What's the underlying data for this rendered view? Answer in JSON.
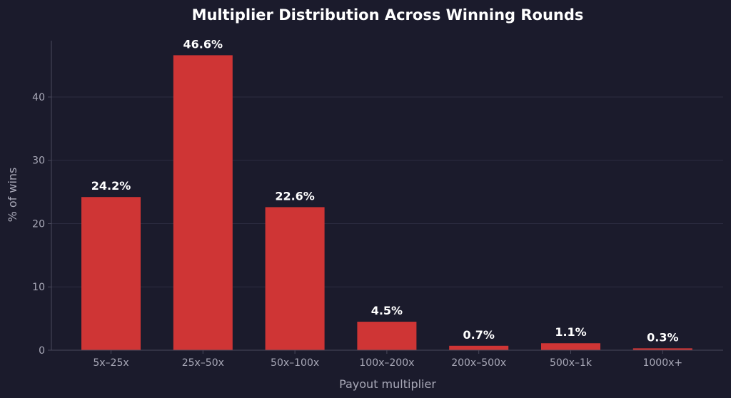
{
  "chart_data": {
    "type": "bar",
    "title": "Multiplier Distribution Across Winning Rounds",
    "xlabel": "Payout multiplier",
    "ylabel": "% of wins",
    "categories": [
      "5x–25x",
      "25x–50x",
      "50x–100x",
      "100x–200x",
      "200x–500x",
      "500x–1k",
      "1000x+"
    ],
    "values": [
      24.2,
      46.6,
      22.6,
      4.5,
      0.7,
      1.1,
      0.3
    ],
    "value_labels": [
      "24.2%",
      "46.6%",
      "22.6%",
      "4.5%",
      "0.7%",
      "1.1%",
      "0.3%"
    ],
    "yticks": [
      0,
      10,
      20,
      30,
      40
    ],
    "ylim": [
      0,
      48.9
    ],
    "grid": "horizontal",
    "legend": "none"
  },
  "colors": {
    "background": "#1b1b2c",
    "bar": "#cf3535",
    "gridline": "#2c2c40",
    "axis": "#4a4a5c",
    "tick_text": "#a9a9b8",
    "title_text": "#ffffff",
    "value_label_text": "#ffffff"
  }
}
